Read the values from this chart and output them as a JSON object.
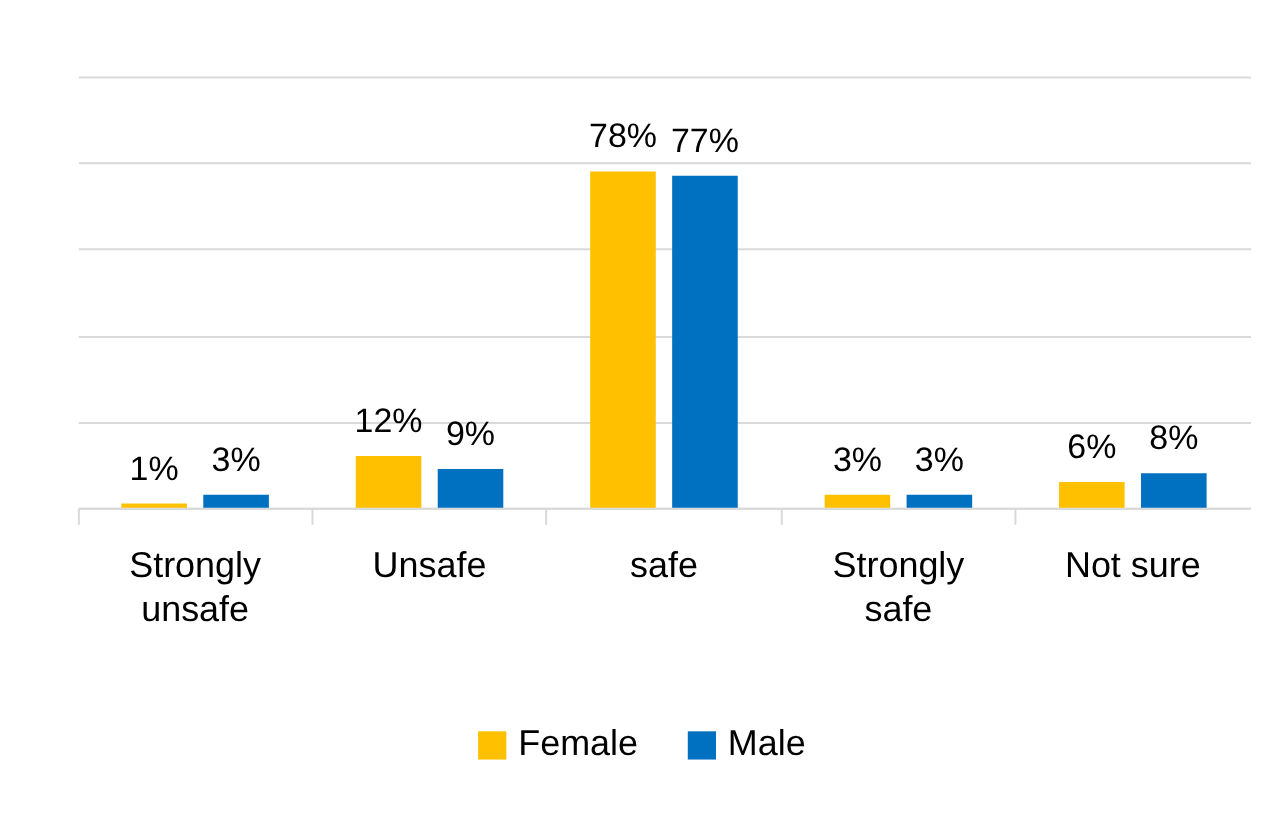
{
  "chart_data": {
    "type": "bar",
    "categories": [
      "Strongly unsafe",
      "Unsafe",
      "safe",
      "Strongly safe",
      "Not sure"
    ],
    "series": [
      {
        "name": "Female",
        "color": "#ffc000",
        "values": [
          1,
          12,
          78,
          3,
          6
        ],
        "value_labels": [
          "1%",
          "12%",
          "78%",
          "3%",
          "6%"
        ]
      },
      {
        "name": "Male",
        "color": "#0070c0",
        "values": [
          3,
          9,
          77,
          3,
          8
        ],
        "value_labels": [
          "3%",
          "9%",
          "77%",
          "3%",
          "8%"
        ]
      }
    ],
    "ylim": [
      0,
      100
    ],
    "yticks": [
      0,
      20,
      40,
      60,
      80,
      100
    ],
    "tick_labels": "x",
    "grid": "y",
    "legend": "bottom"
  }
}
